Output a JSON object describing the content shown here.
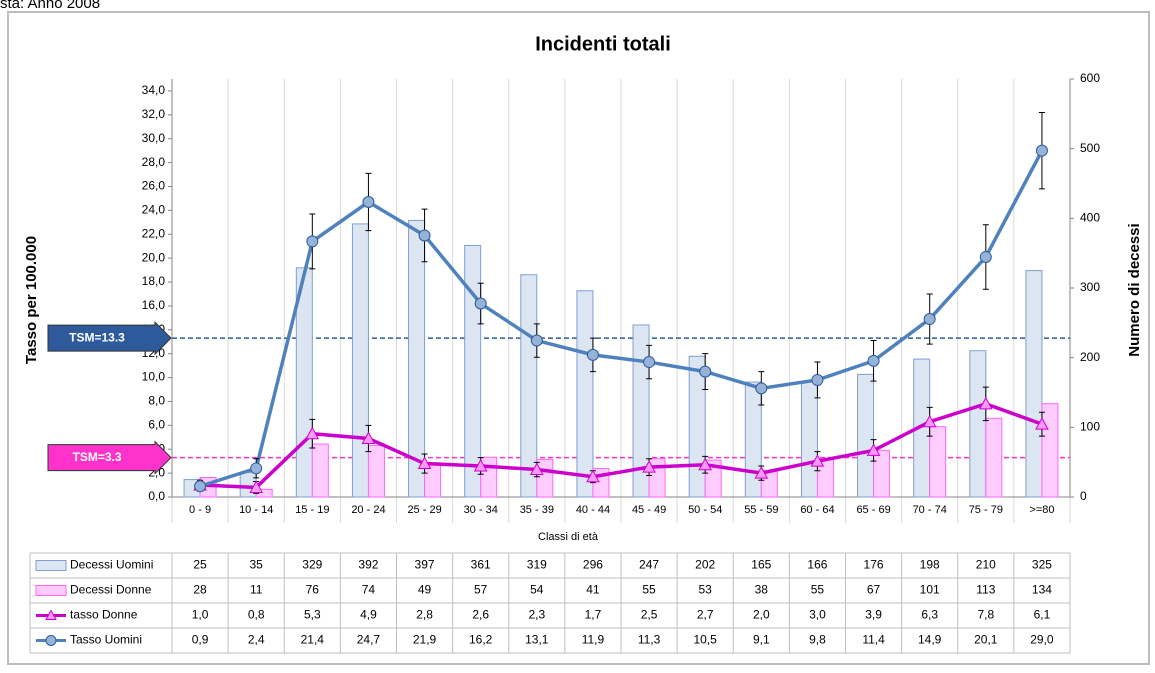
{
  "header": "sta: Anno 2008",
  "chart_data": {
    "type": "combo",
    "title": "Incidenti totali",
    "x_label": "Classi di età",
    "y_label": "Tasso per 100.000",
    "y2_label": "Numero di decessi",
    "categories": [
      "0 - 9",
      "10 - 14",
      "15 - 19",
      "20 - 24",
      "25 - 29",
      "30 - 34",
      "35 - 39",
      "40 - 44",
      "45 - 49",
      "50 - 54",
      "55 - 59",
      "60 - 64",
      "65 - 69",
      "70 - 74",
      "75 - 79",
      ">=80"
    ],
    "ylim": [
      0,
      35
    ],
    "yticks": [
      {
        "value": 0,
        "label": "0,0"
      },
      {
        "value": 2,
        "label": "2,0"
      },
      {
        "value": 4,
        "label": "4,0"
      },
      {
        "value": 6,
        "label": "6,0"
      },
      {
        "value": 8,
        "label": "8,0"
      },
      {
        "value": 10,
        "label": "10,0"
      },
      {
        "value": 12,
        "label": "12,0"
      },
      {
        "value": 14,
        "label": "14,0"
      },
      {
        "value": 16,
        "label": "16,0"
      },
      {
        "value": 18,
        "label": "18,0"
      },
      {
        "value": 20,
        "label": "20,0"
      },
      {
        "value": 22,
        "label": "22,0"
      },
      {
        "value": 24,
        "label": "24,0"
      },
      {
        "value": 26,
        "label": "26,0"
      },
      {
        "value": 28,
        "label": "28,0"
      },
      {
        "value": 30,
        "label": "30,0"
      },
      {
        "value": 32,
        "label": "32,0"
      },
      {
        "value": 34,
        "label": "34,0"
      }
    ],
    "y2lim": [
      0,
      600
    ],
    "y2ticks": [
      0,
      100,
      200,
      300,
      400,
      500,
      600
    ],
    "series": [
      {
        "name": "Decessi Uomini",
        "type": "bar",
        "axis": "y2",
        "color": "#dce6f2",
        "stroke": "#7f9fcf",
        "values": [
          25,
          35,
          329,
          392,
          397,
          361,
          319,
          296,
          247,
          202,
          165,
          166,
          176,
          198,
          210,
          325
        ]
      },
      {
        "name": "Decessi Donne",
        "type": "bar",
        "axis": "y2",
        "color": "#ffccff",
        "stroke": "#ff66ff",
        "values": [
          28,
          11,
          76,
          74,
          49,
          57,
          54,
          41,
          55,
          53,
          38,
          55,
          67,
          101,
          113,
          134
        ]
      },
      {
        "name": "tasso Donne",
        "type": "line",
        "marker": "triangle",
        "color": "#cc00cc",
        "values": [
          1.0,
          0.8,
          5.3,
          4.9,
          2.8,
          2.6,
          2.3,
          1.7,
          2.5,
          2.7,
          2.0,
          3.0,
          3.9,
          6.3,
          7.8,
          6.1
        ],
        "value_labels": [
          "1,0",
          "0,8",
          "5,3",
          "4,9",
          "2,8",
          "2,6",
          "2,3",
          "1,7",
          "2,5",
          "2,7",
          "2,0",
          "3,0",
          "3,9",
          "6,3",
          "7,8",
          "6,1"
        ],
        "errors": [
          0.4,
          0.5,
          1.2,
          1.1,
          0.8,
          0.7,
          0.6,
          0.5,
          0.7,
          0.7,
          0.6,
          0.8,
          0.9,
          1.2,
          1.4,
          1.0
        ]
      },
      {
        "name": "Tasso Uomini",
        "type": "line",
        "marker": "circle",
        "color": "#4f81bd",
        "values": [
          0.9,
          2.4,
          21.4,
          24.7,
          21.9,
          16.2,
          13.1,
          11.9,
          11.3,
          10.5,
          9.1,
          9.8,
          11.4,
          14.9,
          20.1,
          29.0
        ],
        "value_labels": [
          "0,9",
          "2,4",
          "21,4",
          "24,7",
          "21,9",
          "16,2",
          "13,1",
          "11,9",
          "11,3",
          "10,5",
          "9,1",
          "9,8",
          "11,4",
          "14,9",
          "20,1",
          "29,0"
        ],
        "errors": [
          0.4,
          0.8,
          2.3,
          2.4,
          2.2,
          1.7,
          1.4,
          1.4,
          1.4,
          1.5,
          1.4,
          1.5,
          1.7,
          2.1,
          2.7,
          3.2
        ]
      }
    ],
    "reference_lines": [
      {
        "label": "TSM=13.3",
        "value": 13.3,
        "color": "#2e5a9c"
      },
      {
        "label": "TSM=3.3",
        "value": 3.3,
        "color": "#ff33cc"
      }
    ]
  }
}
